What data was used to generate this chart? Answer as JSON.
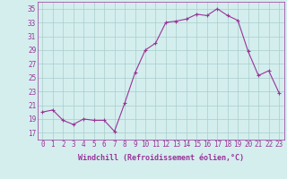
{
  "x": [
    0,
    1,
    2,
    3,
    4,
    5,
    6,
    7,
    8,
    9,
    10,
    11,
    12,
    13,
    14,
    15,
    16,
    17,
    18,
    19,
    20,
    21,
    22,
    23
  ],
  "y": [
    20.0,
    20.3,
    18.8,
    18.2,
    19.0,
    18.8,
    18.8,
    17.2,
    21.3,
    25.7,
    29.0,
    30.0,
    33.0,
    33.2,
    33.5,
    34.2,
    34.0,
    35.0,
    34.0,
    33.3,
    28.8,
    25.3,
    26.0,
    22.8
  ],
  "line_color": "#993399",
  "marker": "+",
  "bg_color": "#d4eeee",
  "grid_color": "#aacccc",
  "xlabel": "Windchill (Refroidissement éolien,°C)",
  "ylim": [
    16,
    36
  ],
  "yticks": [
    17,
    19,
    21,
    23,
    25,
    27,
    29,
    31,
    33,
    35
  ],
  "xticks": [
    0,
    1,
    2,
    3,
    4,
    5,
    6,
    7,
    8,
    9,
    10,
    11,
    12,
    13,
    14,
    15,
    16,
    17,
    18,
    19,
    20,
    21,
    22,
    23
  ],
  "label_color": "#993399",
  "tick_color": "#993399",
  "axis_color": "#993399",
  "font_size": 5.5,
  "xlabel_fontsize": 6.0
}
